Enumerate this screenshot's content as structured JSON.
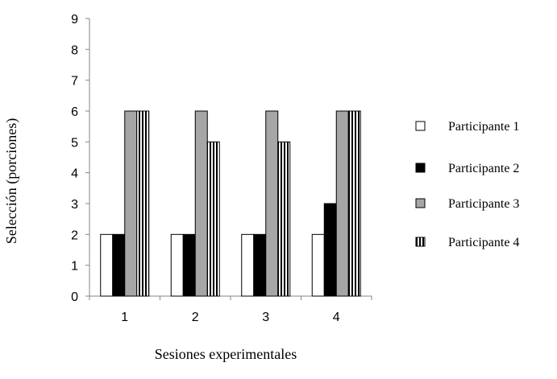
{
  "chart_data": {
    "type": "bar",
    "title": "",
    "xlabel": "Sesiones experimentales",
    "ylabel": "Selección (porciones)",
    "ylim": [
      0,
      9
    ],
    "yticks": [
      0,
      1,
      2,
      3,
      4,
      5,
      6,
      7,
      8,
      9
    ],
    "categories": [
      "1",
      "2",
      "3",
      "4"
    ],
    "series": [
      {
        "name": "Participante 1",
        "values": [
          2,
          2,
          2,
          2
        ],
        "fill": "white"
      },
      {
        "name": "Participante 2",
        "values": [
          2,
          2,
          2,
          3
        ],
        "fill": "black"
      },
      {
        "name": "Participante 3",
        "values": [
          6,
          6,
          6,
          6
        ],
        "fill": "gray"
      },
      {
        "name": "Participante 4",
        "values": [
          6,
          5,
          5,
          6
        ],
        "fill": "vertical-stripes"
      }
    ],
    "legend_position": "right",
    "grid": false
  },
  "colors": {
    "white_fill": "#ffffff",
    "black_fill": "#000000",
    "gray_fill": "#a6a6a6",
    "stroke": "#000000",
    "axis": "#868686"
  }
}
